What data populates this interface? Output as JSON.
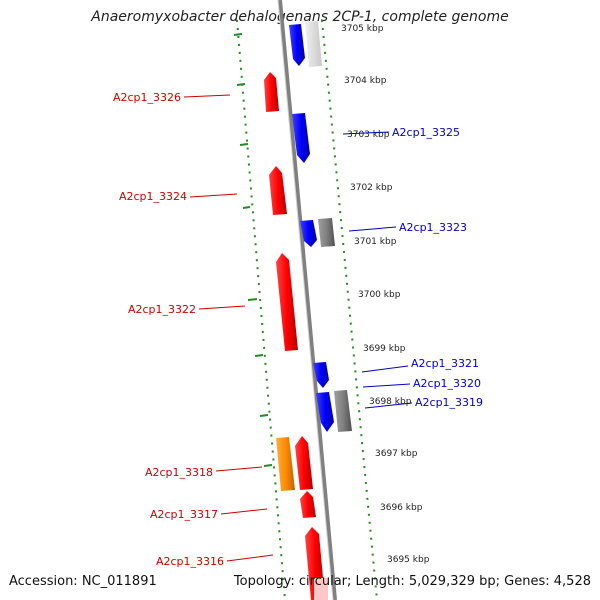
{
  "title": "Anaeromyxobacter dehalogenans 2CP-1, complete genome",
  "footer": {
    "accession": "Accession: NC_011891",
    "info": "Topology: circular; Length: 5,029,329 bp; Genes: 4,528"
  },
  "kbp_ticks": [
    "3705 kbp",
    "3704 kbp",
    "3703 kbp",
    "3702 kbp",
    "3701 kbp",
    "3700 kbp",
    "3699 kbp",
    "3698 kbp",
    "3697 kbp",
    "3696 kbp",
    "3695 kbp"
  ],
  "forward_genes": [
    "A2cp1_3326",
    "A2cp1_3324",
    "A2cp1_3322",
    "A2cp1_3318",
    "A2cp1_3317",
    "A2cp1_3316"
  ],
  "reverse_genes": [
    "A2cp1_3325",
    "A2cp1_3323",
    "A2cp1_3321",
    "A2cp1_3320",
    "A2cp1_3319"
  ],
  "colors": {
    "forward_cds": "#ff0000",
    "reverse_cds": "#0000ff",
    "other_feature": "#ff8c00",
    "rna_feature": "#808080",
    "backbone": "#808080",
    "gc_dots": "#228b22"
  }
}
